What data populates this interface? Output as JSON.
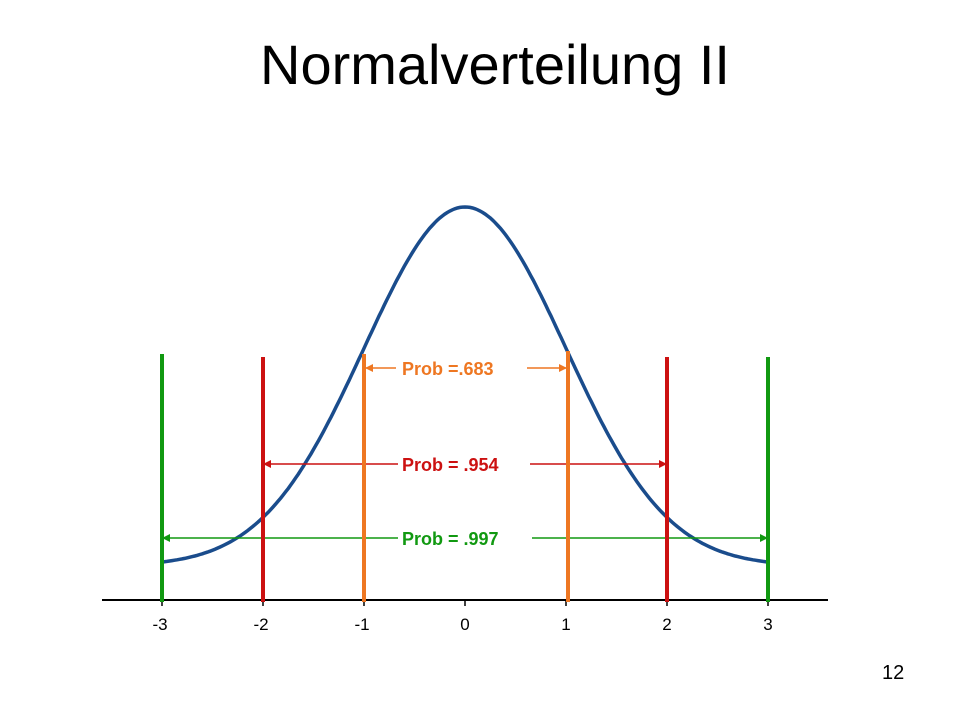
{
  "title": "Normalverteilung II",
  "page_number": "12",
  "axis": {
    "ticks": [
      "-3",
      "-2",
      "-1",
      "0",
      "1",
      "2",
      "3"
    ]
  },
  "intervals": [
    {
      "sigma": 1,
      "label": "Prob =.683",
      "color": "#ee7722"
    },
    {
      "sigma": 2,
      "label": "Prob = .954",
      "color": "#cc1111"
    },
    {
      "sigma": 3,
      "label": "Prob = .997",
      "color": "#119911"
    }
  ],
  "curve": {
    "color": "#1a4c8c",
    "mean": 0,
    "sd": 1
  }
}
